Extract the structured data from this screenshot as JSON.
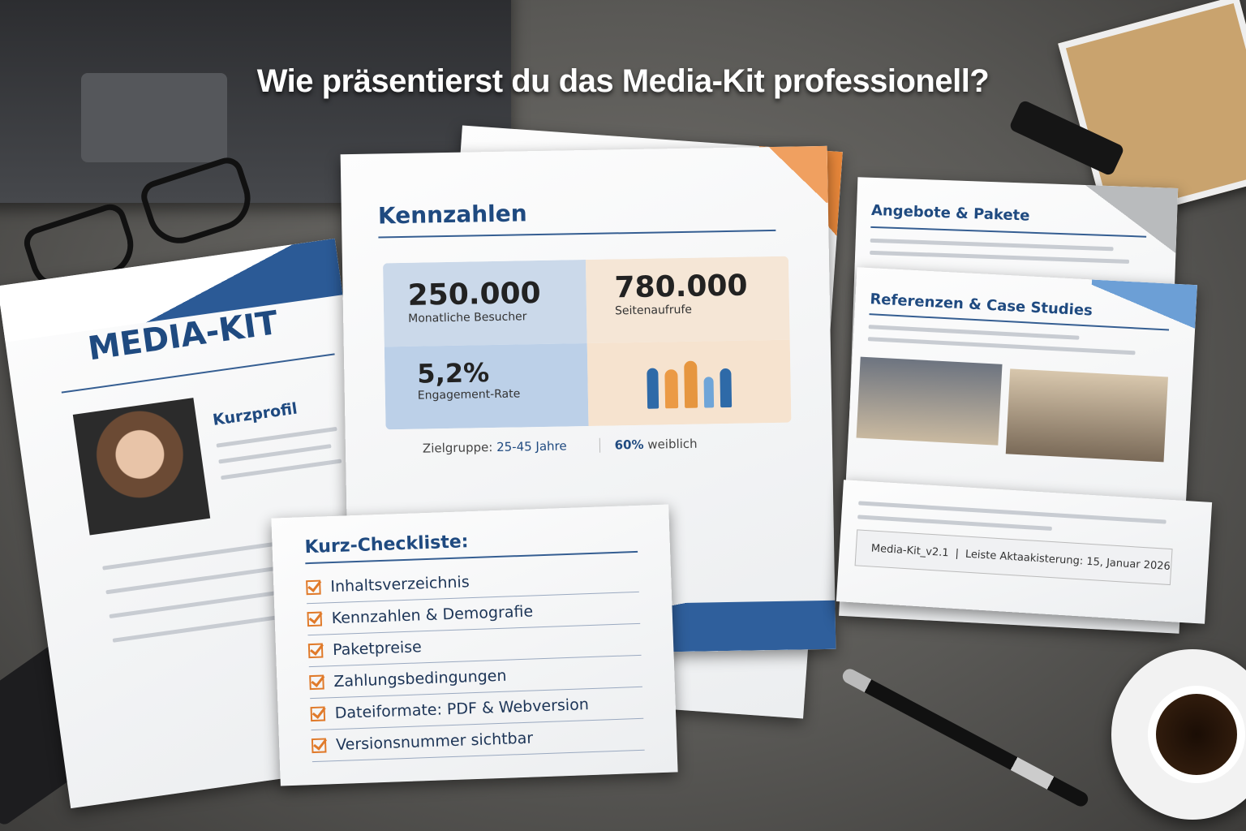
{
  "headline": "Wie präsentierst du das Media-Kit professionell?",
  "cover": {
    "title": "MEDIA-KIT",
    "profile_heading": "Kurzprofil"
  },
  "kennzahlen": {
    "title": "Kennzahlen",
    "stats": [
      {
        "value": "250.000",
        "label": "Monatliche Besucher"
      },
      {
        "value": "780.000",
        "label": "Seitenaufrufe"
      },
      {
        "value": "5,2%",
        "label": "Engagement-Rate"
      }
    ],
    "audience_label": "Zielgruppe:",
    "audience_value": "25-45 Jahre",
    "female_value": "60%",
    "female_label": "weiblich"
  },
  "angebote": {
    "title": "Angebote & Pakete"
  },
  "referenzen": {
    "title": "Referenzen & Case Studies",
    "version": "Media-Kit_v2.1",
    "separator": "|",
    "updated": "Leiste Aktaakisterung: 15, Januar 2026"
  },
  "checklist": {
    "title": "Kurz-Checkliste:",
    "items": [
      "Inhaltsverzeichnis",
      "Kennzahlen & Demografie",
      "Paketpreise",
      "Zahlungsbedingungen",
      "Dateiformate: PDF & Webversion",
      "Versionsnummer sichtbar"
    ]
  },
  "colors": {
    "accent_blue": "#1f4a80",
    "accent_orange": "#e07a2a"
  }
}
